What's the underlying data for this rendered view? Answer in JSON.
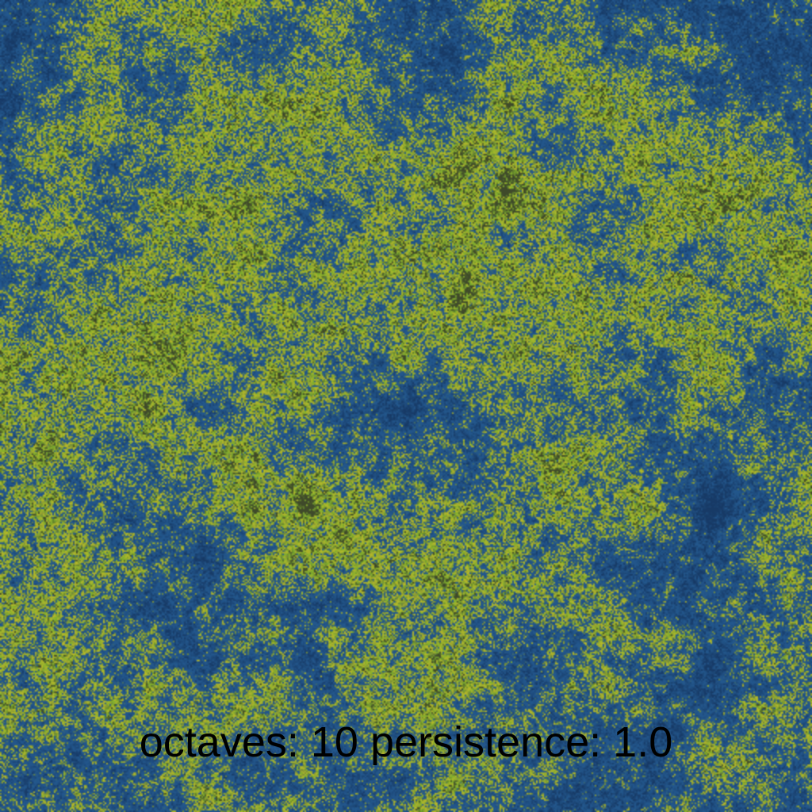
{
  "caption": {
    "octaves_label": "octaves:",
    "octaves_value": "10",
    "persistence_label": "persistence:",
    "persistence_value": "1.0"
  },
  "noise": {
    "octaves": 10,
    "persistence": 1.0
  },
  "colors": {
    "water_deep": "#173a66",
    "water": "#23578c",
    "shore": "#6f8a3a",
    "grass_yellow": "#b8b82a",
    "grass_green": "#7fae2e",
    "highland": "#3f4a2a",
    "caption_text": "#000000"
  }
}
